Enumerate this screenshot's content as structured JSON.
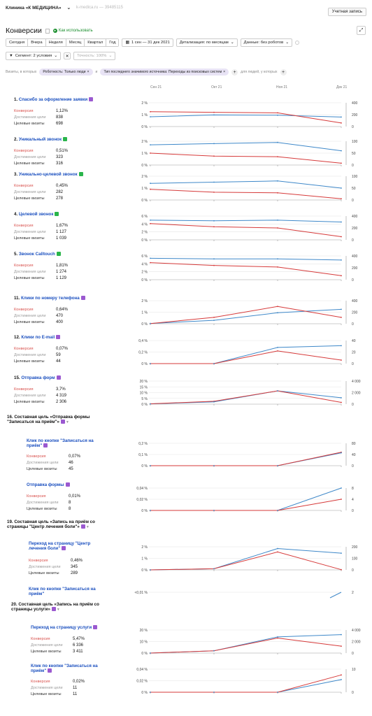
{
  "header": {
    "counter_name": "Клиника «К МЕДИЦИНА»",
    "counter_id": "k-medica.ru — 39485115",
    "account_button": "Учетная запись"
  },
  "page": {
    "title": "Конверсии",
    "howto": "Как использовать"
  },
  "toolbar": {
    "periods": [
      "Сегодня",
      "Вчера",
      "Неделя",
      "Месяц",
      "Квартал",
      "Год"
    ],
    "date_range": "1 сен — 31 дек 2021",
    "detail": "Детализация: по месяцам",
    "data": "Данные: без роботов",
    "segment": "Сегмент: 2 условия",
    "accuracy": "Точность: 100%"
  },
  "filters": {
    "prefix": "Визиты, в которых",
    "chip1": "Роботность: Только люди",
    "chip2": "Тип последнего значимого источника: Переходы из поисковых систем",
    "suffix": "для людей, у которых"
  },
  "axis_dates": [
    "Сен 21",
    "Окт 21",
    "Ноя 21",
    "Дек 21"
  ],
  "metric_labels": [
    "Конверсия",
    "Достижения цели",
    "Целевые визиты"
  ],
  "colors": {
    "conversion": "#d63a3a",
    "visits": "#3e88c9"
  },
  "chart_data": [
    {
      "type": "line",
      "goal": "1.",
      "name": "Спасибо за оформление заявки",
      "badge": "p",
      "conversion": "1,12%",
      "reaches": "838",
      "visits": "698",
      "left_ticks": [
        "2 %",
        "1 %",
        "0 %"
      ],
      "right_ticks": [
        "400",
        "200",
        "0"
      ],
      "left_max": 2,
      "right_max": 400,
      "series": [
        {
          "name": "Конверсия",
          "values": [
            1.25,
            1.2,
            1.15,
            0.3
          ]
        },
        {
          "name": "Целевые визиты",
          "values": [
            165,
            195,
            190,
            160
          ]
        }
      ]
    },
    {
      "type": "line",
      "goal": "2.",
      "name": "Уникальный звонок",
      "badge": "g",
      "conversion": "0,51%",
      "reaches": "323",
      "visits": "316",
      "left_ticks": [
        "2 %",
        "1 %",
        "0 %"
      ],
      "right_ticks": [
        "100",
        "50",
        "0"
      ],
      "left_max": 2,
      "right_max": 100,
      "series": [
        {
          "name": "Конверсия",
          "values": [
            1.0,
            0.75,
            0.7,
            0.15
          ]
        },
        {
          "name": "Целевые визиты",
          "values": [
            85,
            90,
            95,
            60
          ]
        }
      ]
    },
    {
      "type": "line",
      "goal": "3.",
      "name": "Уникально-целевой звонок",
      "badge": "g",
      "conversion": "0,45%",
      "reaches": "282",
      "visits": "278",
      "left_ticks": [
        "2 %",
        "1 %",
        "0 %"
      ],
      "right_ticks": [
        "100",
        "50",
        "0"
      ],
      "left_max": 2,
      "right_max": 100,
      "series": [
        {
          "name": "Конверсия",
          "values": [
            0.9,
            0.65,
            0.6,
            0.1
          ]
        },
        {
          "name": "Целевые визиты",
          "values": [
            70,
            75,
            80,
            50
          ]
        }
      ]
    },
    {
      "type": "line",
      "goal": "4.",
      "name": "Целевой звонок",
      "badge": "g",
      "conversion": "1,67%",
      "reaches": "1 127",
      "visits": "1 039",
      "left_ticks": [
        "6 %",
        "4 %",
        "2 %",
        "0 %"
      ],
      "right_ticks": [
        "400",
        "200",
        "0"
      ],
      "left_max": 6,
      "right_max": 400,
      "series": [
        {
          "name": "Конверсия",
          "values": [
            4.1,
            3.3,
            3.0,
            0.8
          ]
        },
        {
          "name": "Целевые визиты",
          "values": [
            330,
            320,
            330,
            300
          ]
        }
      ]
    },
    {
      "type": "line",
      "goal": "5.",
      "name": "Звонок Calltouch",
      "badge": "g",
      "conversion": "1,81%",
      "reaches": "1 274",
      "visits": "1 129",
      "left_ticks": [
        "6 %",
        "4 %",
        "2 %",
        "0 %"
      ],
      "right_ticks": [
        "400",
        "200",
        "0"
      ],
      "left_max": 6,
      "right_max": 400,
      "series": [
        {
          "name": "Конверсия",
          "values": [
            4.3,
            3.6,
            3.2,
            1.0
          ]
        },
        {
          "name": "Целевые визиты",
          "values": [
            360,
            350,
            350,
            330
          ]
        }
      ]
    },
    {
      "type": "line",
      "goal": "11.",
      "name": "Клики по номеру телефона",
      "badge": "p",
      "conversion": "0,64%",
      "reaches": "470",
      "visits": "400",
      "left_ticks": [
        "2 %",
        "1 %",
        "0 %"
      ],
      "right_ticks": [
        "400",
        "200",
        "0"
      ],
      "left_max": 2,
      "right_max": 400,
      "series": [
        {
          "name": "Конверсия",
          "values": [
            0.02,
            0.55,
            1.5,
            0.55
          ]
        },
        {
          "name": "Целевые визиты",
          "values": [
            5,
            60,
            190,
            250
          ]
        }
      ]
    },
    {
      "type": "line",
      "goal": "12.",
      "name": "Клики по E-mail",
      "badge": "p",
      "conversion": "0,07%",
      "reaches": "59",
      "visits": "44",
      "left_ticks": [
        "0,4 %",
        "0,2 %",
        "0 %"
      ],
      "right_ticks": [
        "40",
        "20",
        "0"
      ],
      "left_max": 0.4,
      "right_max": 40,
      "series": [
        {
          "name": "Конверсия",
          "values": [
            0.0,
            0.0,
            0.22,
            0.06
          ]
        },
        {
          "name": "Целевые визиты",
          "values": [
            0,
            0,
            28,
            31
          ]
        }
      ]
    },
    {
      "type": "line",
      "goal": "15.",
      "name": "Отправка форм",
      "badge": "p",
      "conversion": "3,7%",
      "reaches": "4 319",
      "visits": "2 306",
      "left_ticks": [
        "20 %",
        "15 %",
        "10 %",
        "5 %",
        "0 %"
      ],
      "right_ticks": [
        "4 000",
        "2 000",
        "0"
      ],
      "left_max": 20,
      "right_max": 4000,
      "series": [
        {
          "name": "Конверсия",
          "values": [
            0.3,
            2.5,
            11.5,
            1.5
          ]
        },
        {
          "name": "Целевые визиты",
          "values": [
            50,
            400,
            2300,
            1100
          ]
        }
      ]
    },
    {
      "type": "line",
      "goal": "",
      "name": "Клик по кнопке \"Записаться на приём\"",
      "badge": "p",
      "conversion": "0,07%",
      "reaches": "46",
      "visits": "45",
      "left_ticks": [
        "0,2 %",
        "0,1 %",
        "0 %"
      ],
      "right_ticks": [
        "80",
        "40",
        "0"
      ],
      "left_max": 0.2,
      "right_max": 80,
      "series": [
        {
          "name": "Конверсия",
          "values": [
            0,
            0,
            0,
            0.12
          ]
        },
        {
          "name": "Целевые визиты",
          "values": [
            0,
            0,
            0,
            46
          ]
        }
      ]
    },
    {
      "type": "line",
      "goal": "",
      "name": "Отправка формы",
      "badge": "p",
      "conversion": "0,01%",
      "reaches": "8",
      "visits": "8",
      "left_ticks": [
        "0,04 %",
        "0,02 %",
        "0 %"
      ],
      "right_ticks": [
        "8",
        "4",
        "0"
      ],
      "left_max": 0.04,
      "right_max": 8,
      "series": [
        {
          "name": "Конверсия",
          "values": [
            0,
            0,
            0,
            0.02
          ]
        },
        {
          "name": "Целевые визиты",
          "values": [
            0,
            0,
            0,
            8
          ]
        }
      ]
    },
    {
      "type": "line",
      "goal": "",
      "name": "Переход на страницу \"Центр лечения боли\"",
      "badge": "p",
      "conversion": "0,46%",
      "reaches": "345",
      "visits": "289",
      "left_ticks": [
        "2 %",
        "1 %",
        "0 %"
      ],
      "right_ticks": [
        "200",
        "100",
        "0"
      ],
      "left_max": 2,
      "right_max": 200,
      "series": [
        {
          "name": "Конверсия",
          "values": [
            0,
            0.1,
            1.55,
            0.02
          ]
        },
        {
          "name": "Целевые визиты",
          "values": [
            0,
            10,
            185,
            145
          ]
        }
      ]
    },
    {
      "type": "line",
      "goal": "",
      "name": "Переход на страницу услуги",
      "badge": "p",
      "conversion": "5,47%",
      "reaches": "6 336",
      "visits": "3 411",
      "left_ticks": [
        "20 %",
        "10 %",
        "0 %"
      ],
      "right_ticks": [
        "4 000",
        "2 000",
        "0"
      ],
      "left_max": 20,
      "right_max": 4000,
      "series": [
        {
          "name": "Конверсия",
          "values": [
            0,
            2,
            13,
            6
          ]
        },
        {
          "name": "Целевые визиты",
          "values": [
            0,
            400,
            2800,
            3200
          ]
        }
      ]
    },
    {
      "type": "line",
      "goal": "",
      "name": "Клик по кнопке \"Записаться на приём\"",
      "badge": "p",
      "conversion": "0,02%",
      "reaches": "11",
      "visits": "11",
      "left_ticks": [
        "0,04 %",
        "0,02 %",
        "0 %"
      ],
      "right_ticks": [
        "10",
        "0"
      ],
      "left_max": 0.04,
      "right_max": 20,
      "series": [
        {
          "name": "Конверсия",
          "values": [
            0,
            0,
            0,
            0.03
          ]
        },
        {
          "name": "Целевые визиты",
          "values": [
            0,
            0,
            0,
            11
          ]
        }
      ]
    }
  ],
  "composite_goals": [
    {
      "goal": "16.",
      "name": "Составная цель «Отправка формы \"Записаться на приём\"»"
    },
    {
      "goal": "19.",
      "name": "Составная цель «Запись на приём со страницы \"Центр лечения боли\"»"
    },
    {
      "goal": "20.",
      "name": "Составная цель «Запись на приём со страницы услуги»"
    }
  ],
  "partial_goal": {
    "name": "Клик по кнопке \"Записаться на приём\"",
    "tick": "<0,01 %",
    "right_tick": "2"
  }
}
